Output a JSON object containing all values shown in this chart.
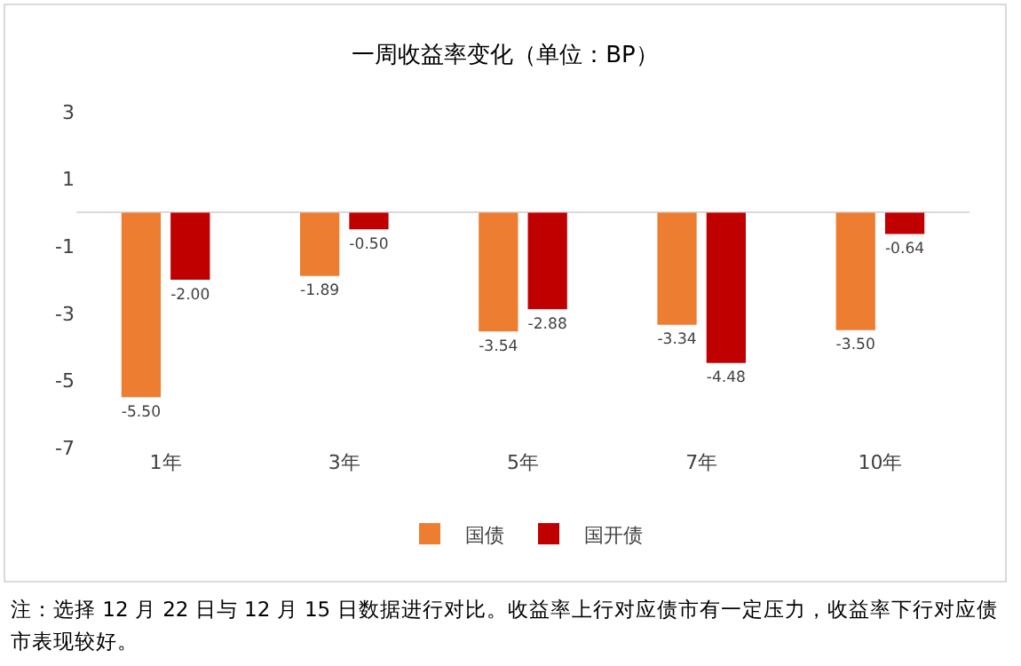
{
  "chart_data": {
    "type": "bar",
    "title": "一周收益率变化（单位：BP）",
    "categories": [
      "1年",
      "3年",
      "5年",
      "7年",
      "10年"
    ],
    "series": [
      {
        "name": "国债",
        "color": "#ed7d31",
        "values": [
          -5.5,
          -1.89,
          -3.54,
          -3.34,
          -3.5
        ],
        "value_labels": [
          "-5.50",
          "-1.89",
          "-3.54",
          "-3.34",
          "-3.50"
        ]
      },
      {
        "name": "国开债",
        "color": "#c00000",
        "values": [
          -2.0,
          -0.5,
          -2.88,
          -4.48,
          -0.64
        ],
        "value_labels": [
          "-2.00",
          "-0.50",
          "-2.88",
          "-4.48",
          "-0.64"
        ]
      }
    ],
    "ylim": [
      -7,
      3
    ],
    "yticks": [
      3,
      1,
      -1,
      -3,
      -5,
      -7
    ],
    "grid": false,
    "legend": "bottom",
    "annotations": [
      "注：选择 12 月 22 日与 12 月 15 日数据进行对比。收益率上行对应债市有一定压力，收益率下行对应债市表现较好。"
    ]
  }
}
